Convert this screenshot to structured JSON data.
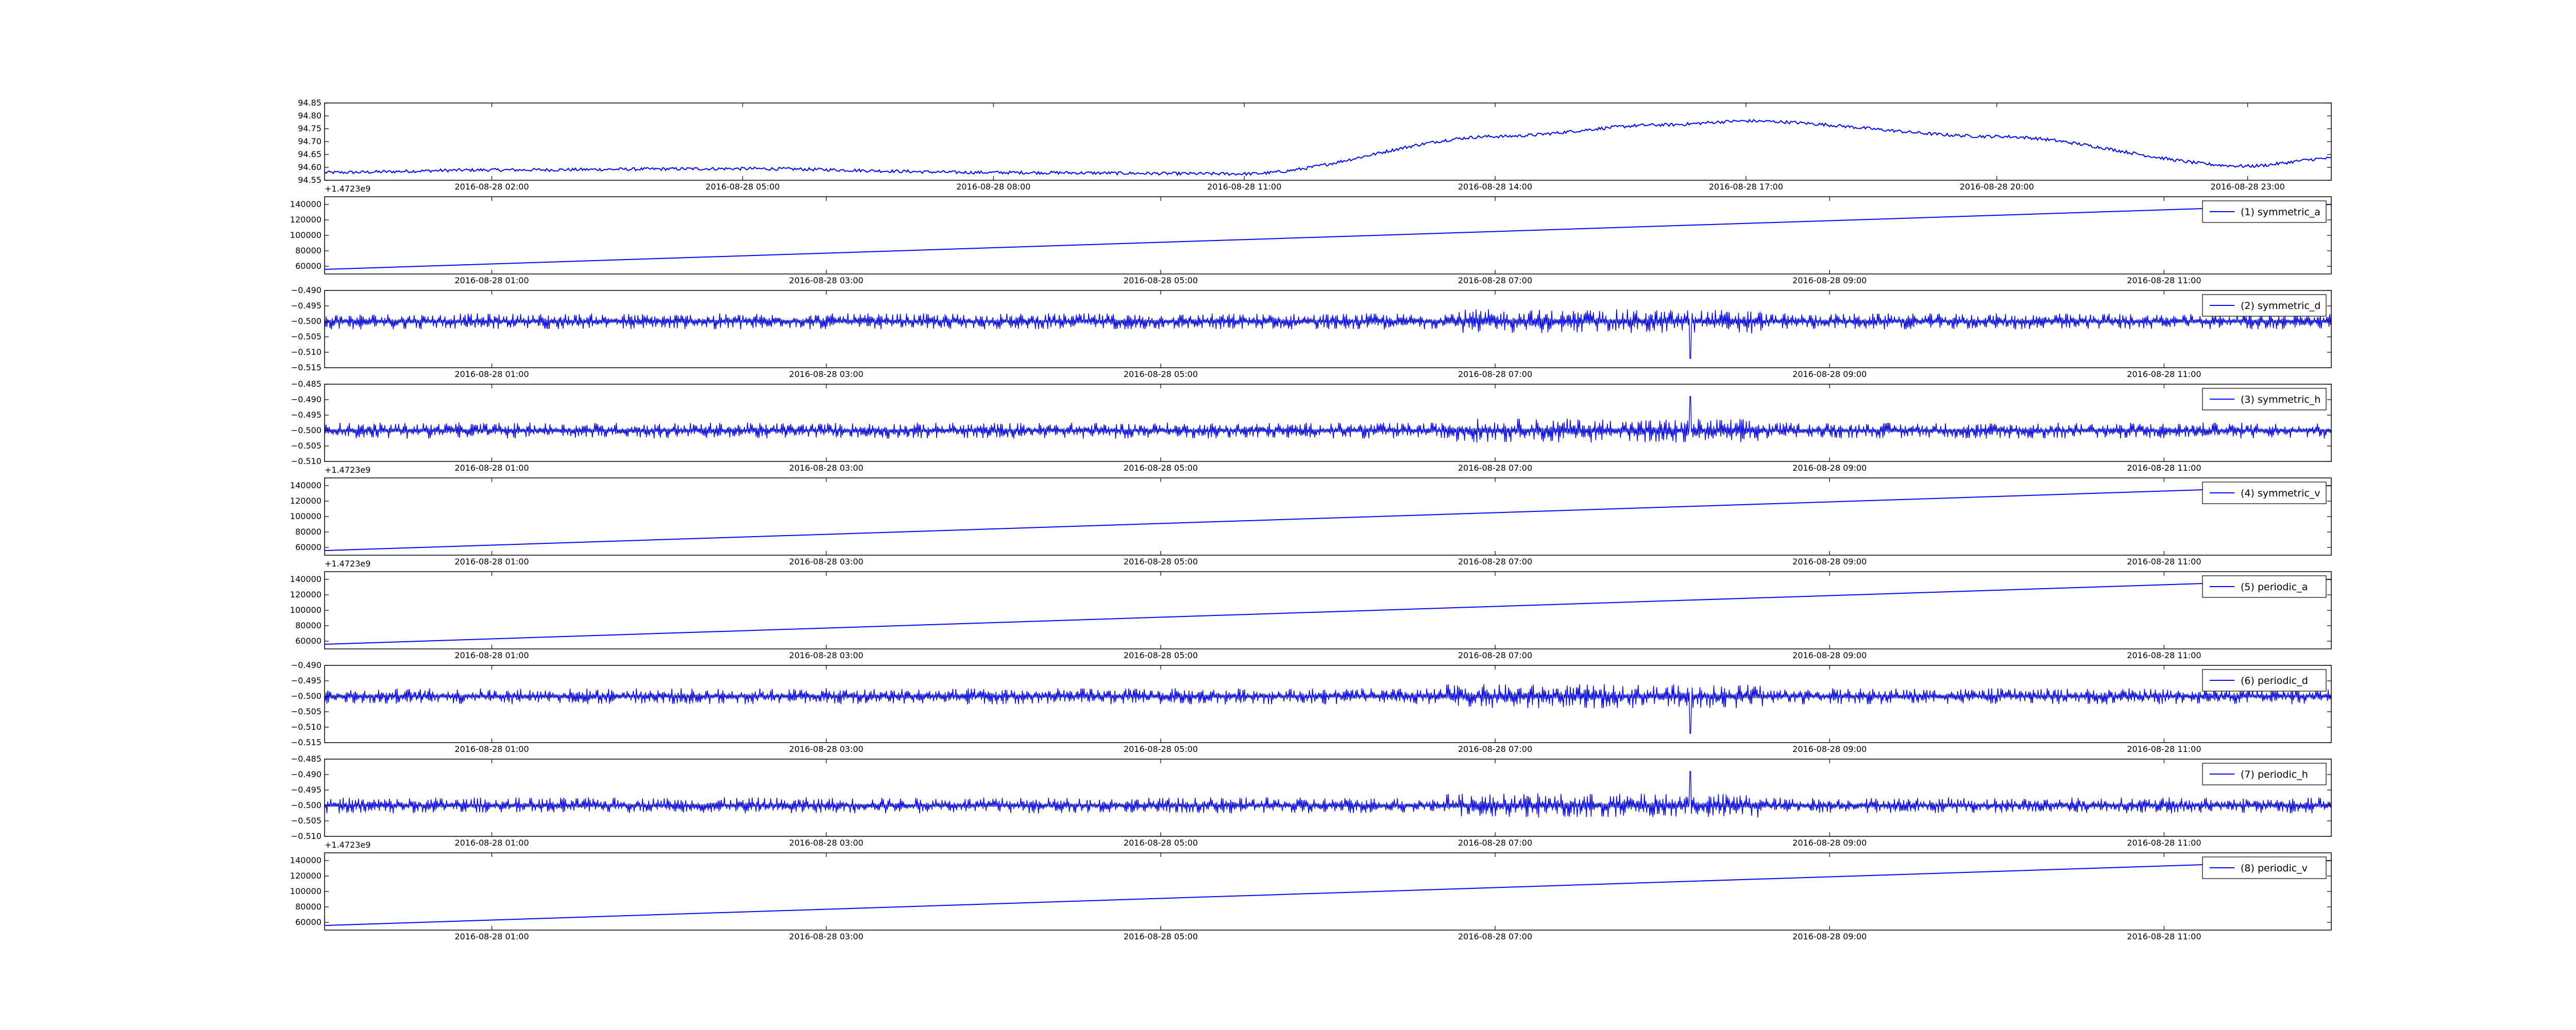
{
  "colors": {
    "series": "#0000ff",
    "axes": "#000000",
    "background": "#ffffff"
  },
  "chart_data": [
    {
      "type": "line",
      "y_ticks": [
        "94.55",
        "94.60",
        "94.65",
        "94.70",
        "94.75",
        "94.80",
        "94.85"
      ],
      "ylim": [
        94.55,
        94.85
      ],
      "x_ticks": [
        "2016-08-28 02:00",
        "2016-08-28 05:00",
        "2016-08-28 08:00",
        "2016-08-28 11:00",
        "2016-08-28 14:00",
        "2016-08-28 17:00",
        "2016-08-28 20:00",
        "2016-08-28 23:00"
      ],
      "x_offset_label": "+1.4723e9",
      "legend": "",
      "series": [
        {
          "x": [
            "2016-08-28 00:00",
            "2016-08-28 02:00",
            "2016-08-28 05:00",
            "2016-08-28 08:00",
            "2016-08-28 11:00",
            "2016-08-28 14:00",
            "2016-08-28 16:00",
            "2016-08-28 17:00",
            "2016-08-28 20:00",
            "2016-08-28 23:00",
            "2016-08-29 00:00"
          ],
          "y": [
            94.58,
            94.59,
            94.595,
            94.58,
            94.575,
            94.72,
            94.765,
            94.78,
            94.72,
            94.605,
            94.635
          ]
        }
      ]
    },
    {
      "type": "line",
      "y_ticks": [
        "60000",
        "80000",
        "100000",
        "120000",
        "140000"
      ],
      "ylim": [
        50000,
        150000
      ],
      "x_ticks": [
        "2016-08-28 01:00",
        "2016-08-28 03:00",
        "2016-08-28 05:00",
        "2016-08-28 07:00",
        "2016-08-28 09:00",
        "2016-08-28 11:00"
      ],
      "x_offset_label": "",
      "legend": "(1) symmetric_a",
      "series": [
        {
          "name": "(1) symmetric_a",
          "x": [
            "2016-08-28 00:00",
            "2016-08-28 12:00"
          ],
          "y": [
            56000,
            140000
          ]
        }
      ]
    },
    {
      "type": "line",
      "y_ticks": [
        "−0.515",
        "−0.510",
        "−0.505",
        "−0.500",
        "−0.495",
        "−0.490"
      ],
      "ylim": [
        -0.515,
        -0.49
      ],
      "x_ticks": [
        "2016-08-28 01:00",
        "2016-08-28 03:00",
        "2016-08-28 05:00",
        "2016-08-28 07:00",
        "2016-08-28 09:00",
        "2016-08-28 11:00"
      ],
      "x_offset_label": "",
      "legend": "(2) symmetric_d",
      "series": [
        {
          "name": "(2) symmetric_d",
          "baseline": -0.5,
          "spread": 0.0025,
          "spikes": [
            {
              "x": "2016-08-28 08:10",
              "y": -0.512
            }
          ]
        }
      ]
    },
    {
      "type": "line",
      "y_ticks": [
        "−0.510",
        "−0.505",
        "−0.500",
        "−0.495",
        "−0.490",
        "−0.485"
      ],
      "ylim": [
        -0.51,
        -0.485
      ],
      "x_ticks": [
        "2016-08-28 01:00",
        "2016-08-28 03:00",
        "2016-08-28 05:00",
        "2016-08-28 07:00",
        "2016-08-28 09:00",
        "2016-08-28 11:00"
      ],
      "x_offset_label": "+1.4723e9",
      "legend": "(3) symmetric_h",
      "series": [
        {
          "name": "(3) symmetric_h",
          "baseline": -0.5,
          "spread": 0.0025,
          "spikes": [
            {
              "x": "2016-08-28 08:10",
              "y": -0.489
            }
          ]
        }
      ]
    },
    {
      "type": "line",
      "y_ticks": [
        "60000",
        "80000",
        "100000",
        "120000",
        "140000"
      ],
      "ylim": [
        50000,
        150000
      ],
      "x_ticks": [
        "2016-08-28 01:00",
        "2016-08-28 03:00",
        "2016-08-28 05:00",
        "2016-08-28 07:00",
        "2016-08-28 09:00",
        "2016-08-28 11:00"
      ],
      "x_offset_label": "+1.4723e9",
      "legend": "(4) symmetric_v",
      "series": [
        {
          "name": "(4) symmetric_v",
          "x": [
            "2016-08-28 00:00",
            "2016-08-28 12:00"
          ],
          "y": [
            56000,
            140000
          ]
        }
      ]
    },
    {
      "type": "line",
      "y_ticks": [
        "60000",
        "80000",
        "100000",
        "120000",
        "140000"
      ],
      "ylim": [
        50000,
        150000
      ],
      "x_ticks": [
        "2016-08-28 01:00",
        "2016-08-28 03:00",
        "2016-08-28 05:00",
        "2016-08-28 07:00",
        "2016-08-28 09:00",
        "2016-08-28 11:00"
      ],
      "x_offset_label": "",
      "legend": "(5) periodic_a",
      "series": [
        {
          "name": "(5) periodic_a",
          "x": [
            "2016-08-28 00:00",
            "2016-08-28 12:00"
          ],
          "y": [
            56000,
            140000
          ]
        }
      ]
    },
    {
      "type": "line",
      "y_ticks": [
        "−0.515",
        "−0.510",
        "−0.505",
        "−0.500",
        "−0.495",
        "−0.490"
      ],
      "ylim": [
        -0.515,
        -0.49
      ],
      "x_ticks": [
        "2016-08-28 01:00",
        "2016-08-28 03:00",
        "2016-08-28 05:00",
        "2016-08-28 07:00",
        "2016-08-28 09:00",
        "2016-08-28 11:00"
      ],
      "x_offset_label": "",
      "legend": "(6) periodic_d",
      "series": [
        {
          "name": "(6) periodic_d",
          "baseline": -0.5,
          "spread": 0.0025,
          "spikes": [
            {
              "x": "2016-08-28 08:10",
              "y": -0.512
            }
          ]
        }
      ]
    },
    {
      "type": "line",
      "y_ticks": [
        "−0.510",
        "−0.505",
        "−0.500",
        "−0.495",
        "−0.490",
        "−0.485"
      ],
      "ylim": [
        -0.51,
        -0.485
      ],
      "x_ticks": [
        "2016-08-28 01:00",
        "2016-08-28 03:00",
        "2016-08-28 05:00",
        "2016-08-28 07:00",
        "2016-08-28 09:00",
        "2016-08-28 11:00"
      ],
      "x_offset_label": "+1.4723e9",
      "legend": "(7) periodic_h",
      "series": [
        {
          "name": "(7) periodic_h",
          "baseline": -0.5,
          "spread": 0.0025,
          "spikes": [
            {
              "x": "2016-08-28 08:10",
              "y": -0.489
            }
          ]
        }
      ]
    },
    {
      "type": "line",
      "y_ticks": [
        "60000",
        "80000",
        "100000",
        "120000",
        "140000"
      ],
      "ylim": [
        50000,
        150000
      ],
      "x_ticks": [
        "2016-08-28 01:00",
        "2016-08-28 03:00",
        "2016-08-28 05:00",
        "2016-08-28 07:00",
        "2016-08-28 09:00",
        "2016-08-28 11:00"
      ],
      "x_offset_label": "",
      "legend": "(8) periodic_v",
      "series": [
        {
          "name": "(8) periodic_v",
          "x": [
            "2016-08-28 00:00",
            "2016-08-28 12:00"
          ],
          "y": [
            56000,
            140000
          ]
        }
      ]
    }
  ]
}
